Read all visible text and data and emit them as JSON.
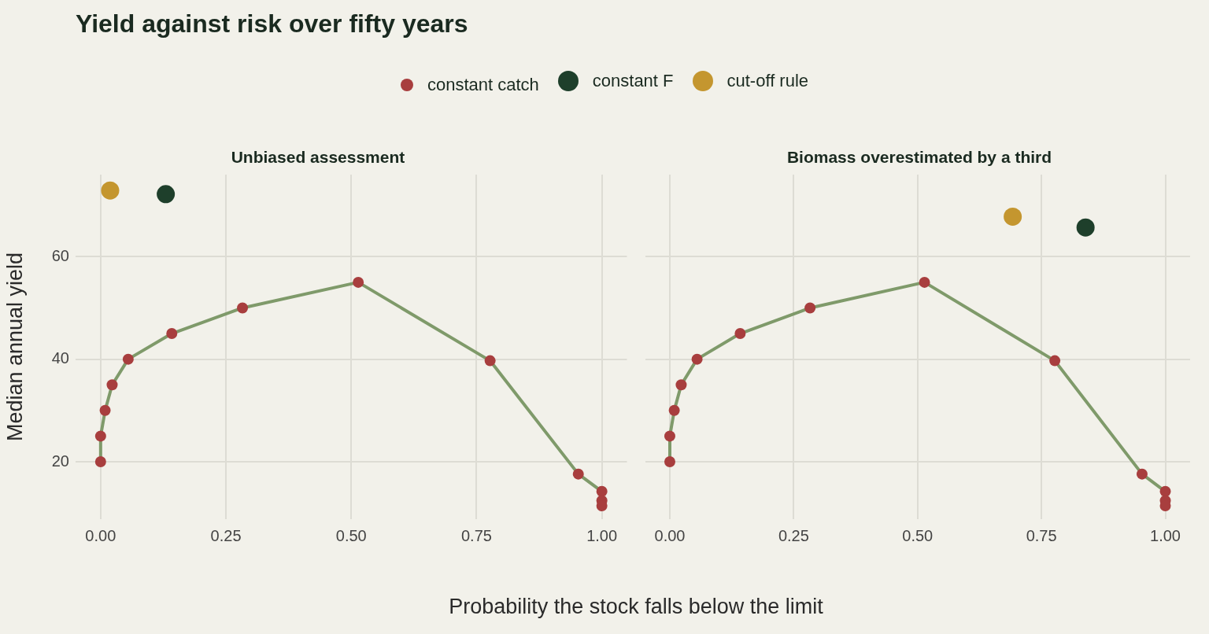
{
  "chart_data": [
    {
      "type": "scatter",
      "title": "Yield against risk over fifty years",
      "subtitle": "Unbiased assessment",
      "xlabel": "Probability the stock falls below the limit",
      "ylabel": "Median annual yield",
      "legend": "top",
      "grid": true,
      "marker": "circle",
      "xlim": [
        -0.05,
        1.05
      ],
      "xticks": [
        {
          "value": 0,
          "label": "0.00"
        },
        {
          "value": 0.25,
          "label": "0.25"
        },
        {
          "value": 0.5,
          "label": "0.50"
        },
        {
          "value": 0.75,
          "label": "0.75"
        },
        {
          "value": 1,
          "label": "1.00"
        }
      ],
      "ylim": [
        8.8,
        76
      ],
      "yticks": [
        20,
        40,
        60
      ],
      "series": [
        {
          "type": "line",
          "marker": "none",
          "color": "#7f9a6a",
          "x": [
            0,
            0,
            0.009,
            0.023,
            0.055,
            0.142,
            0.283,
            0.514,
            0.777,
            0.953,
            1
          ],
          "values": [
            20,
            25,
            30,
            35,
            40,
            45,
            50,
            55,
            39.7,
            17.6,
            14.2
          ]
        },
        {
          "name": "constant catch",
          "color": "#a83e3e",
          "x": [
            0,
            0,
            0.009,
            0.023,
            0.055,
            0.142,
            0.283,
            0.514,
            0.777,
            0.953,
            1,
            1,
            1
          ],
          "values": [
            20,
            25,
            30,
            35,
            40,
            45,
            50,
            55,
            39.7,
            17.6,
            14.2,
            12.4,
            11.4
          ]
        },
        {
          "name": "constant F",
          "color": "#1e3f2b",
          "x": [
            0.13
          ],
          "values": [
            72.2
          ]
        },
        {
          "name": "cut-off rule",
          "color": "#c4962f",
          "x": [
            0.019
          ],
          "values": [
            72.9
          ]
        }
      ]
    },
    {
      "type": "scatter",
      "subtitle": "Biomass overestimated by a third",
      "grid": true,
      "marker": "circle",
      "tick_labels": "x",
      "xlim": [
        -0.05,
        1.05
      ],
      "xticks": [
        {
          "value": 0,
          "label": "0.00"
        },
        {
          "value": 0.25,
          "label": "0.25"
        },
        {
          "value": 0.5,
          "label": "0.50"
        },
        {
          "value": 0.75,
          "label": "0.75"
        },
        {
          "value": 1,
          "label": "1.00"
        }
      ],
      "ylim": [
        8.8,
        76
      ],
      "yticks": [
        20,
        40,
        60
      ],
      "series": [
        {
          "type": "line",
          "marker": "none",
          "color": "#7f9a6a",
          "x": [
            0,
            0,
            0.009,
            0.023,
            0.055,
            0.142,
            0.283,
            0.514,
            0.777,
            0.953,
            1
          ],
          "values": [
            20,
            25,
            30,
            35,
            40,
            45,
            50,
            55,
            39.7,
            17.6,
            14.2
          ]
        },
        {
          "color": "#a83e3e",
          "x": [
            0,
            0,
            0.009,
            0.023,
            0.055,
            0.142,
            0.283,
            0.514,
            0.777,
            0.953,
            1,
            1,
            1
          ],
          "values": [
            20,
            25,
            30,
            35,
            40,
            45,
            50,
            55,
            39.7,
            17.6,
            14.2,
            12.4,
            11.4
          ]
        },
        {
          "color": "#1e3f2b",
          "x": [
            0.839
          ],
          "values": [
            65.7
          ]
        },
        {
          "color": "#c4962f",
          "x": [
            0.692
          ],
          "values": [
            67.8
          ]
        }
      ]
    }
  ]
}
